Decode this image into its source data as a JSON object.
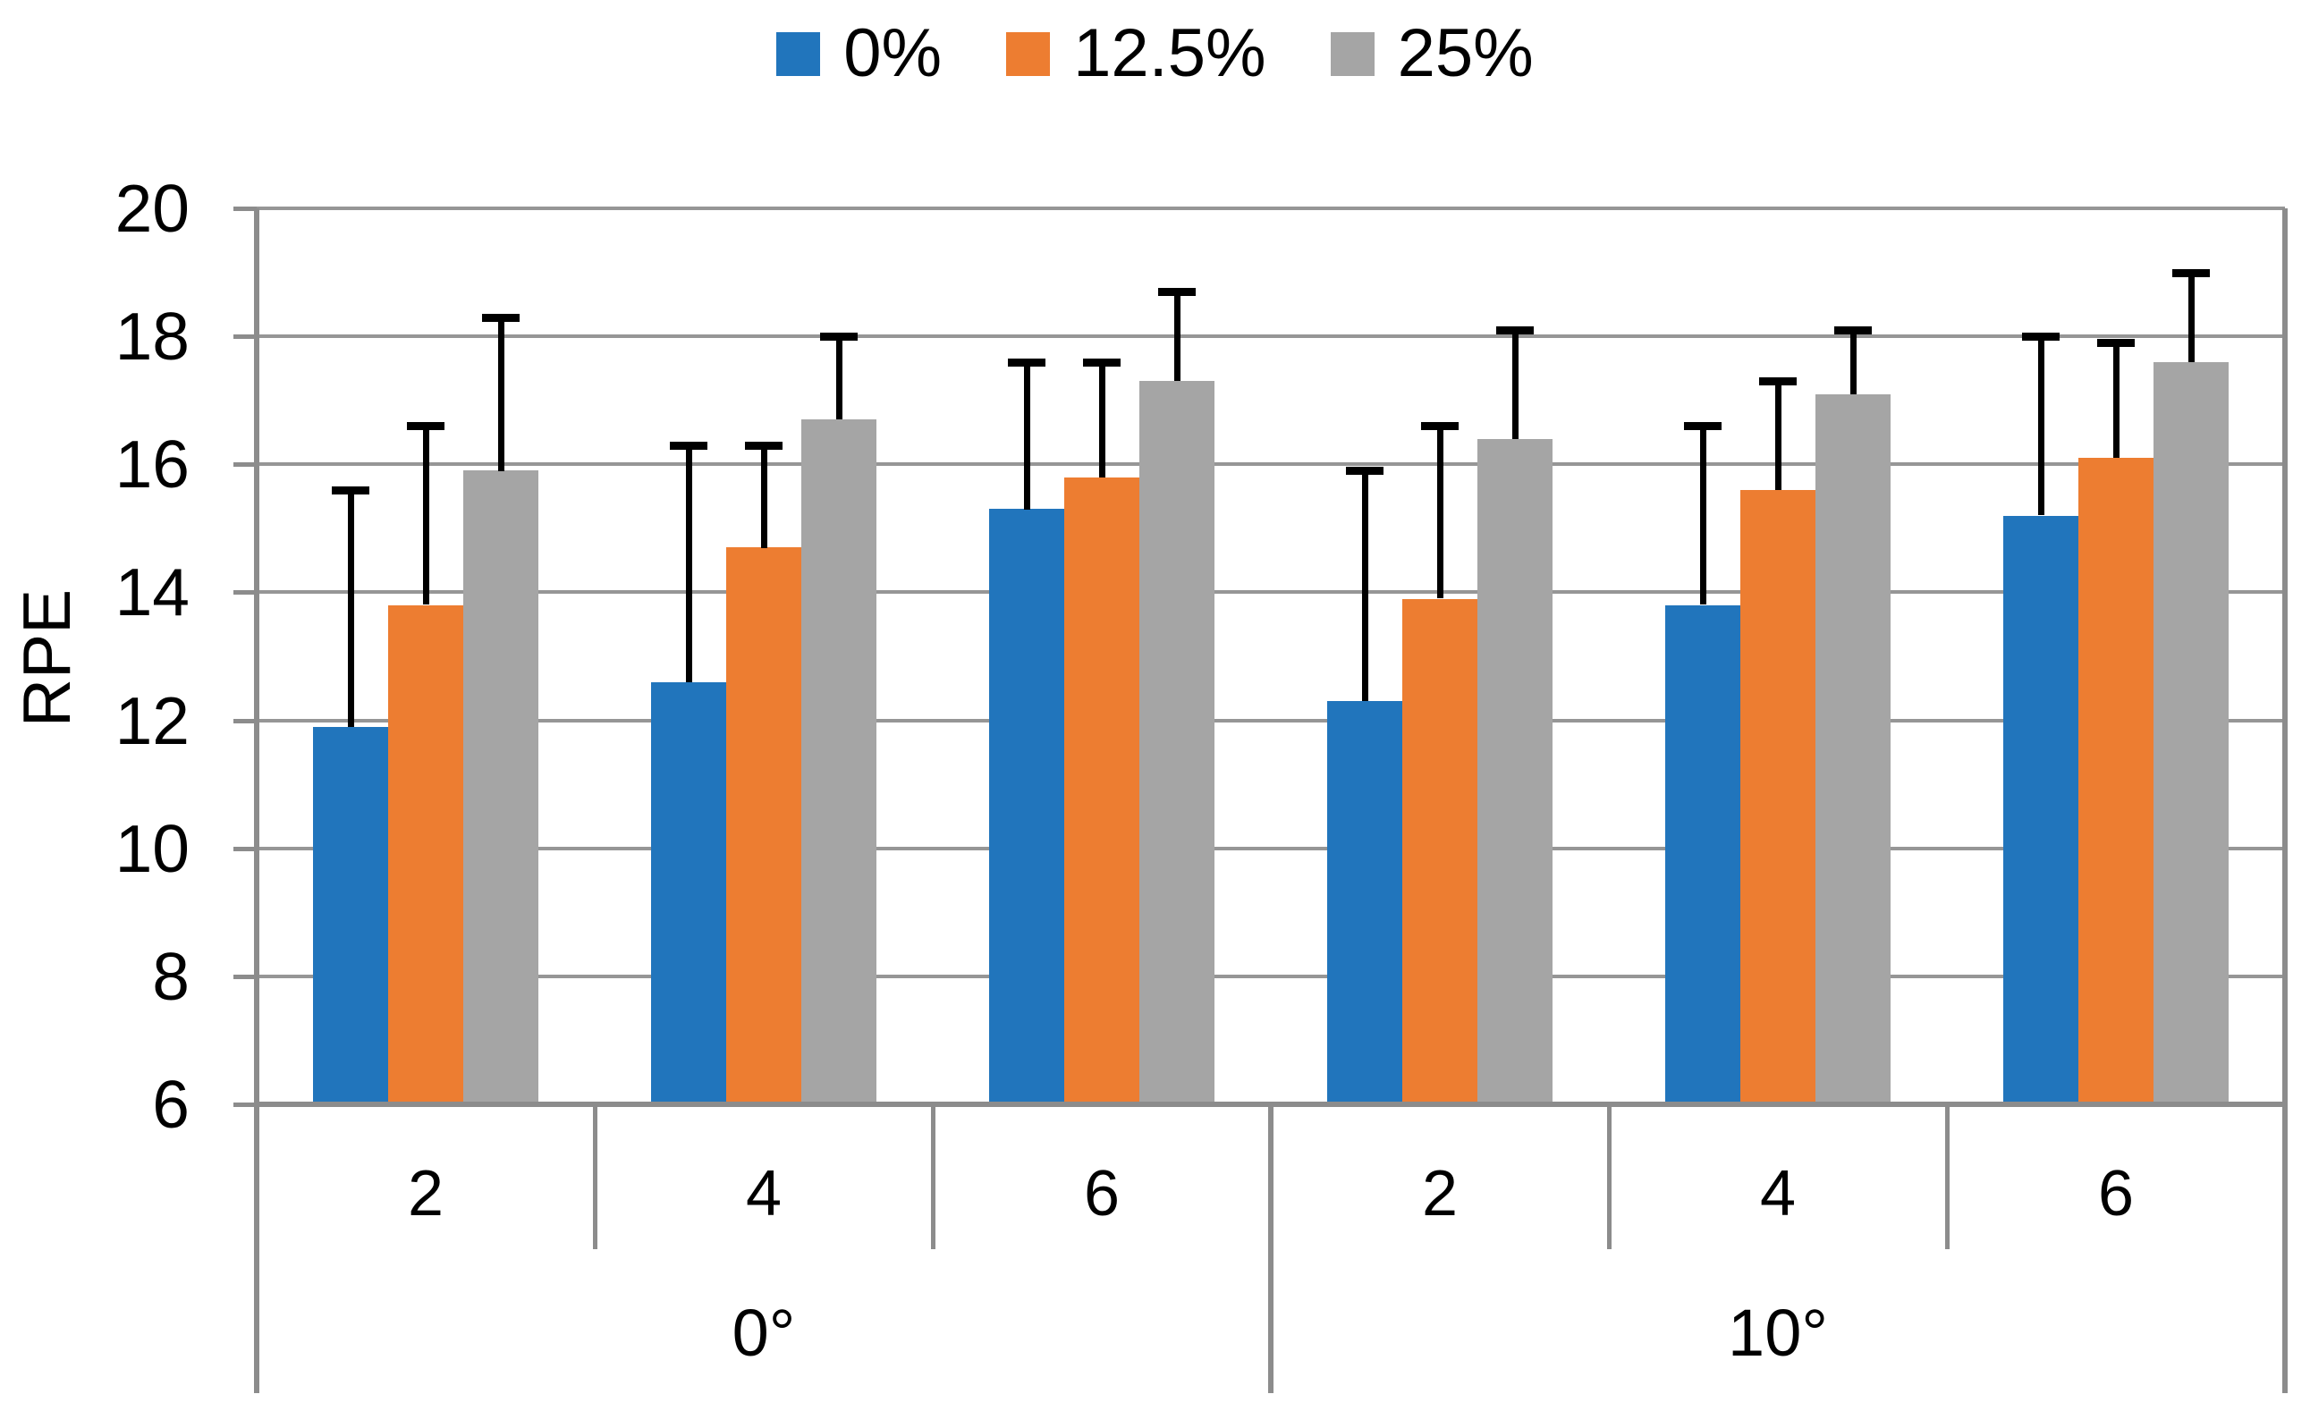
{
  "chart_data": {
    "type": "bar",
    "title": "",
    "ylabel": "RPE",
    "ylim": [
      6,
      20
    ],
    "yticks": [
      6,
      8,
      10,
      12,
      14,
      16,
      18,
      20
    ],
    "grid": true,
    "legend_position": "top-center",
    "group_labels": [
      "0°",
      "10°"
    ],
    "categories": [
      "2",
      "4",
      "6",
      "2",
      "4",
      "6"
    ],
    "series": [
      {
        "name": "0%",
        "color": "#2175BC",
        "values": [
          11.9,
          12.6,
          15.3,
          12.3,
          13.8,
          15.2
        ],
        "error_up": [
          3.7,
          3.7,
          2.3,
          3.6,
          2.8,
          2.8
        ]
      },
      {
        "name": "12.5%",
        "color": "#ED7D31",
        "values": [
          13.8,
          14.7,
          15.8,
          13.9,
          15.6,
          16.1
        ],
        "error_up": [
          2.8,
          1.6,
          1.8,
          2.7,
          1.7,
          1.8
        ]
      },
      {
        "name": "25%",
        "color": "#A5A5A5",
        "values": [
          15.9,
          16.7,
          17.3,
          16.4,
          17.1,
          17.6
        ],
        "error_up": [
          2.4,
          1.3,
          1.4,
          1.7,
          1.0,
          1.4
        ]
      }
    ],
    "colors": {
      "gridline": "#969696",
      "axis": "#8C8C8C",
      "error_bar": "#000000",
      "text": "#000000"
    }
  }
}
